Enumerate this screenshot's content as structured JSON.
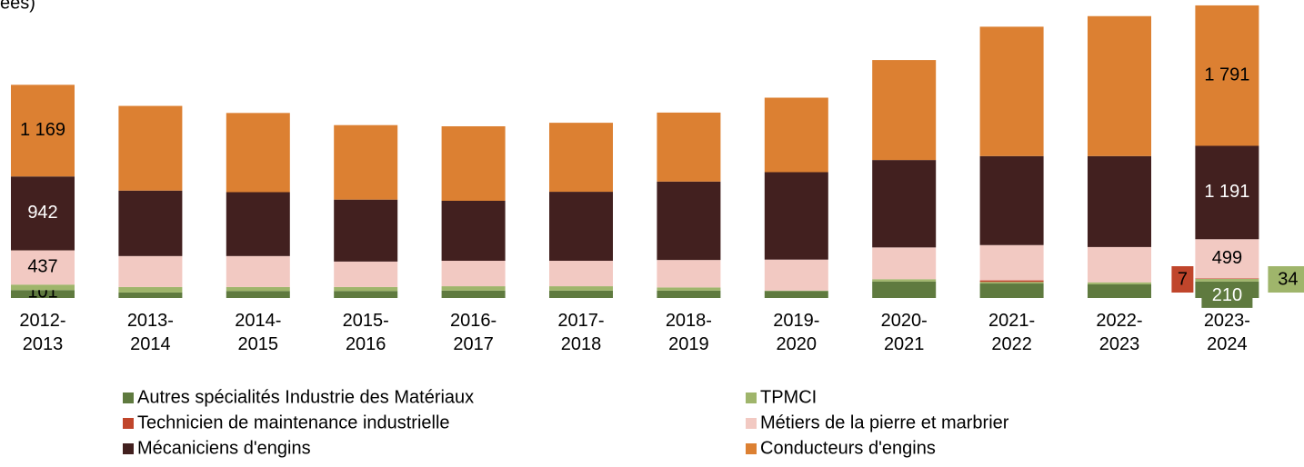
{
  "chart_data": {
    "type": "stacked-bar",
    "title": "ées)",
    "categories": [
      "2012-2013",
      "2013-2014",
      "2014-2015",
      "2015-2016",
      "2016-2017",
      "2017-2018",
      "2018-2019",
      "2019-2020",
      "2020-2021",
      "2021-2022",
      "2022-2023",
      "2023-2024"
    ],
    "series": [
      {
        "name": "Autres spécialités Industrie des Matériaux",
        "color": "#5f7a3f",
        "values": [
          101,
          70,
          90,
          90,
          95,
          95,
          95,
          90,
          210,
          185,
          175,
          210
        ],
        "value_labels": [
          "101",
          null,
          null,
          null,
          null,
          null,
          null,
          null,
          null,
          null,
          null,
          "210"
        ]
      },
      {
        "name": "TPMCI",
        "color": "#9fb56b",
        "values": [
          70,
          70,
          50,
          50,
          55,
          55,
          40,
          5,
          30,
          20,
          25,
          34
        ],
        "value_labels": [
          null,
          null,
          null,
          null,
          null,
          null,
          null,
          null,
          null,
          null,
          null,
          "34"
        ]
      },
      {
        "name": "Technicien de maintenance industrielle",
        "color": "#c0452b",
        "values": [
          0,
          0,
          0,
          0,
          0,
          0,
          0,
          0,
          0,
          20,
          0,
          7
        ],
        "value_labels": [
          null,
          null,
          null,
          null,
          null,
          null,
          null,
          null,
          null,
          null,
          null,
          "7"
        ]
      },
      {
        "name": "Métiers de la pierre et marbrier",
        "color": "#f2c9c2",
        "values": [
          437,
          395,
          395,
          325,
          325,
          325,
          350,
          395,
          405,
          450,
          450,
          499
        ],
        "value_labels": [
          "437",
          null,
          null,
          null,
          null,
          null,
          null,
          null,
          null,
          null,
          null,
          "499"
        ]
      },
      {
        "name": "Mécaniciens d'engins",
        "color": "#42201f",
        "values": [
          942,
          835,
          815,
          790,
          765,
          880,
          1000,
          1115,
          1115,
          1135,
          1160,
          1191
        ],
        "value_labels": [
          "942",
          null,
          null,
          null,
          null,
          null,
          null,
          null,
          null,
          null,
          null,
          "1 191"
        ]
      },
      {
        "name": "Conducteurs d'engins",
        "color": "#dc8032",
        "values": [
          1169,
          1080,
          1010,
          950,
          950,
          880,
          880,
          950,
          1275,
          1650,
          1785,
          1791
        ],
        "value_labels": [
          "1 169",
          null,
          null,
          null,
          null,
          null,
          null,
          null,
          null,
          null,
          null,
          "1 791"
        ]
      }
    ]
  }
}
